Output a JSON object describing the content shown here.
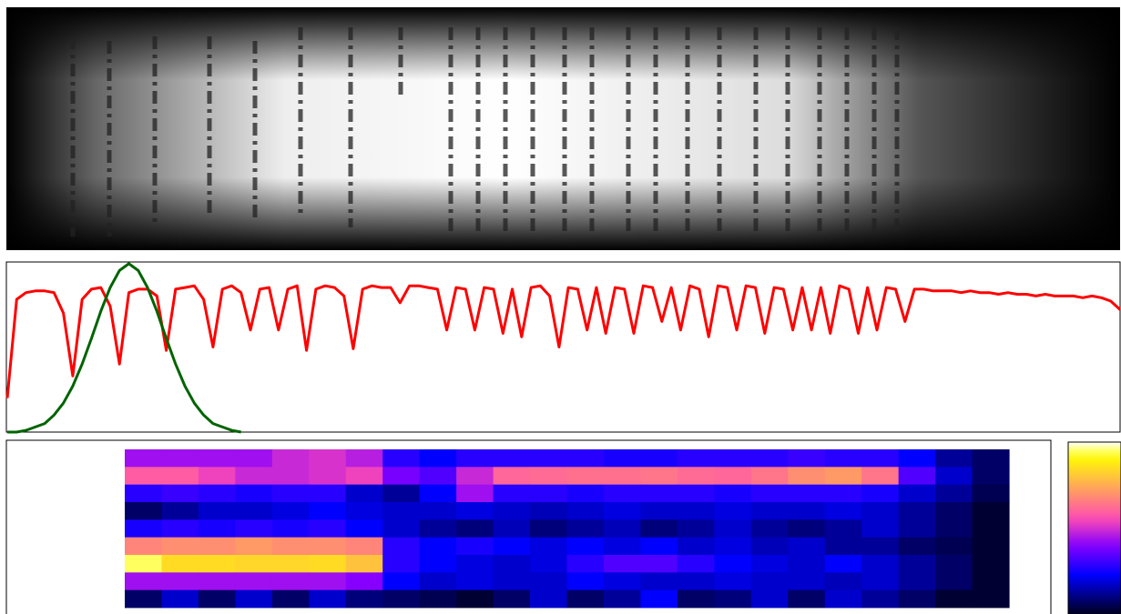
{
  "chart_data": [
    {
      "type": "line",
      "ylim": [
        0,
        1
      ],
      "series": [
        {
          "color": "#ff0000",
          "values": [
            0.2,
            0.78,
            0.82,
            0.83,
            0.83,
            0.82,
            0.7,
            0.33,
            0.78,
            0.84,
            0.85,
            0.74,
            0.4,
            0.82,
            0.84,
            0.84,
            0.8,
            0.48,
            0.84,
            0.85,
            0.86,
            0.78,
            0.5,
            0.84,
            0.86,
            0.82,
            0.6,
            0.84,
            0.85,
            0.6,
            0.84,
            0.86,
            0.48,
            0.84,
            0.86,
            0.85,
            0.8,
            0.49,
            0.84,
            0.86,
            0.85,
            0.85,
            0.76,
            0.86,
            0.86,
            0.85,
            0.84,
            0.6,
            0.85,
            0.84,
            0.6,
            0.85,
            0.84,
            0.58,
            0.84,
            0.56,
            0.85,
            0.86,
            0.8,
            0.5,
            0.85,
            0.84,
            0.6,
            0.85,
            0.58,
            0.85,
            0.84,
            0.58,
            0.86,
            0.85,
            0.65,
            0.85,
            0.6,
            0.86,
            0.84,
            0.56,
            0.86,
            0.85,
            0.6,
            0.86,
            0.85,
            0.58,
            0.85,
            0.84,
            0.6,
            0.85,
            0.6,
            0.85,
            0.58,
            0.86,
            0.84,
            0.58,
            0.85,
            0.6,
            0.85,
            0.84,
            0.65,
            0.84,
            0.84,
            0.83,
            0.83,
            0.83,
            0.82,
            0.83,
            0.82,
            0.82,
            0.81,
            0.82,
            0.81,
            0.81,
            0.8,
            0.81,
            0.8,
            0.8,
            0.8,
            0.79,
            0.8,
            0.79,
            0.77,
            0.72
          ]
        },
        {
          "color": "#006400",
          "values": [
            0.0,
            0.0,
            0.01,
            0.03,
            0.05,
            0.1,
            0.17,
            0.27,
            0.4,
            0.55,
            0.71,
            0.85,
            0.95,
            0.99,
            0.95,
            0.85,
            0.71,
            0.55,
            0.4,
            0.27,
            0.17,
            0.1,
            0.05,
            0.03,
            0.01,
            0.0,
            null,
            null,
            null,
            null,
            null,
            null,
            null,
            null,
            null,
            null,
            null,
            null,
            null,
            null,
            null,
            null,
            null,
            null,
            null,
            null,
            null,
            null,
            null,
            null,
            null,
            null,
            null,
            null,
            null,
            null,
            null,
            null,
            null,
            null,
            null,
            null,
            null,
            null,
            null,
            null,
            null,
            null,
            null,
            null,
            null,
            null,
            null,
            null,
            null,
            null,
            null,
            null,
            null,
            null,
            null,
            null,
            null,
            null,
            null,
            null,
            null,
            null,
            null,
            null,
            null,
            null,
            null,
            null,
            null,
            null,
            null,
            null,
            null,
            null,
            null,
            null,
            null,
            null,
            null,
            null,
            null,
            null,
            null,
            null,
            null,
            null,
            null,
            null,
            null,
            null,
            null,
            null,
            null,
            null
          ]
        }
      ]
    },
    {
      "type": "heatmap",
      "colormap": "gnuplot2",
      "zlim": [
        0,
        1
      ],
      "colorbar": true,
      "values": [
        [
          0.45,
          0.45,
          0.45,
          0.45,
          0.5,
          0.52,
          0.48,
          0.3,
          0.25,
          0.3,
          0.3,
          0.3,
          0.3,
          0.28,
          0.28,
          0.3,
          0.3,
          0.3,
          0.32,
          0.3,
          0.3,
          0.25,
          0.15,
          0.1
        ],
        [
          0.6,
          0.6,
          0.55,
          0.5,
          0.5,
          0.52,
          0.55,
          0.4,
          0.35,
          0.5,
          0.62,
          0.63,
          0.64,
          0.64,
          0.65,
          0.63,
          0.62,
          0.65,
          0.7,
          0.72,
          0.65,
          0.35,
          0.2,
          0.1
        ],
        [
          0.3,
          0.32,
          0.3,
          0.28,
          0.3,
          0.3,
          0.2,
          0.15,
          0.25,
          0.45,
          0.3,
          0.3,
          0.28,
          0.3,
          0.3,
          0.3,
          0.28,
          0.3,
          0.3,
          0.3,
          0.28,
          0.2,
          0.15,
          0.08
        ],
        [
          0.1,
          0.15,
          0.2,
          0.2,
          0.22,
          0.25,
          0.22,
          0.2,
          0.2,
          0.22,
          0.2,
          0.18,
          0.2,
          0.22,
          0.2,
          0.2,
          0.22,
          0.2,
          0.2,
          0.22,
          0.2,
          0.15,
          0.1,
          0.05
        ],
        [
          0.28,
          0.3,
          0.28,
          0.3,
          0.28,
          0.3,
          0.25,
          0.2,
          0.15,
          0.12,
          0.18,
          0.12,
          0.15,
          0.18,
          0.12,
          0.15,
          0.2,
          0.15,
          0.12,
          0.15,
          0.2,
          0.15,
          0.1,
          0.05
        ],
        [
          0.68,
          0.7,
          0.7,
          0.72,
          0.7,
          0.7,
          0.68,
          0.3,
          0.25,
          0.28,
          0.25,
          0.22,
          0.25,
          0.22,
          0.25,
          0.2,
          0.22,
          0.18,
          0.2,
          0.15,
          0.15,
          0.1,
          0.08,
          0.05
        ],
        [
          0.95,
          0.85,
          0.85,
          0.84,
          0.84,
          0.85,
          0.8,
          0.3,
          0.25,
          0.22,
          0.2,
          0.22,
          0.3,
          0.35,
          0.35,
          0.3,
          0.25,
          0.22,
          0.2,
          0.25,
          0.2,
          0.15,
          0.1,
          0.05
        ],
        [
          0.45,
          0.45,
          0.45,
          0.45,
          0.45,
          0.45,
          0.42,
          0.25,
          0.2,
          0.22,
          0.2,
          0.2,
          0.25,
          0.22,
          0.2,
          0.2,
          0.22,
          0.2,
          0.2,
          0.18,
          0.2,
          0.15,
          0.1,
          0.05
        ],
        [
          0.1,
          0.2,
          0.1,
          0.2,
          0.1,
          0.2,
          0.12,
          0.1,
          0.08,
          0.05,
          0.1,
          0.2,
          0.1,
          0.15,
          0.25,
          0.1,
          0.12,
          0.2,
          0.1,
          0.2,
          0.15,
          0.1,
          0.05,
          0.05
        ]
      ]
    }
  ]
}
